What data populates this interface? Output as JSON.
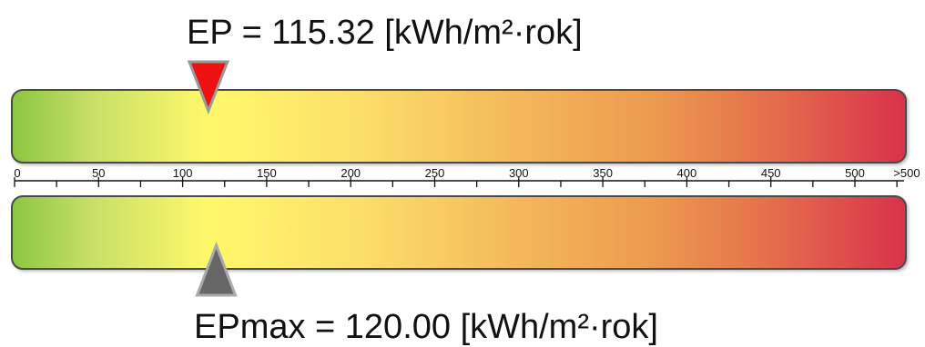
{
  "ep": {
    "label": "EP = 115.32 [kWh/m²·rok]",
    "value": 115.32,
    "marker_color": "#ee1111"
  },
  "epmax": {
    "label": "EPmax = 120.00 [kWh/m²·rok]",
    "value": 120.0,
    "marker_color": "#666666"
  },
  "scale": {
    "min": 0,
    "max": 530,
    "labels": [
      {
        "value": 0,
        "text": "0"
      },
      {
        "value": 50,
        "text": "50"
      },
      {
        "value": 100,
        "text": "100"
      },
      {
        "value": 150,
        "text": "150"
      },
      {
        "value": 200,
        "text": "200"
      },
      {
        "value": 250,
        "text": "250"
      },
      {
        "value": 300,
        "text": "300"
      },
      {
        "value": 350,
        "text": "350"
      },
      {
        "value": 400,
        "text": "400"
      },
      {
        "value": 450,
        "text": "450"
      },
      {
        "value": 500,
        "text": "500"
      },
      {
        "value": 530,
        "text": ">500"
      }
    ],
    "major_tick_step": 50,
    "minor_tick_step": 25
  },
  "colors": {
    "gradient_low": "#8cc63f",
    "gradient_mid": "#fff86b",
    "gradient_high": "#d9334a"
  }
}
